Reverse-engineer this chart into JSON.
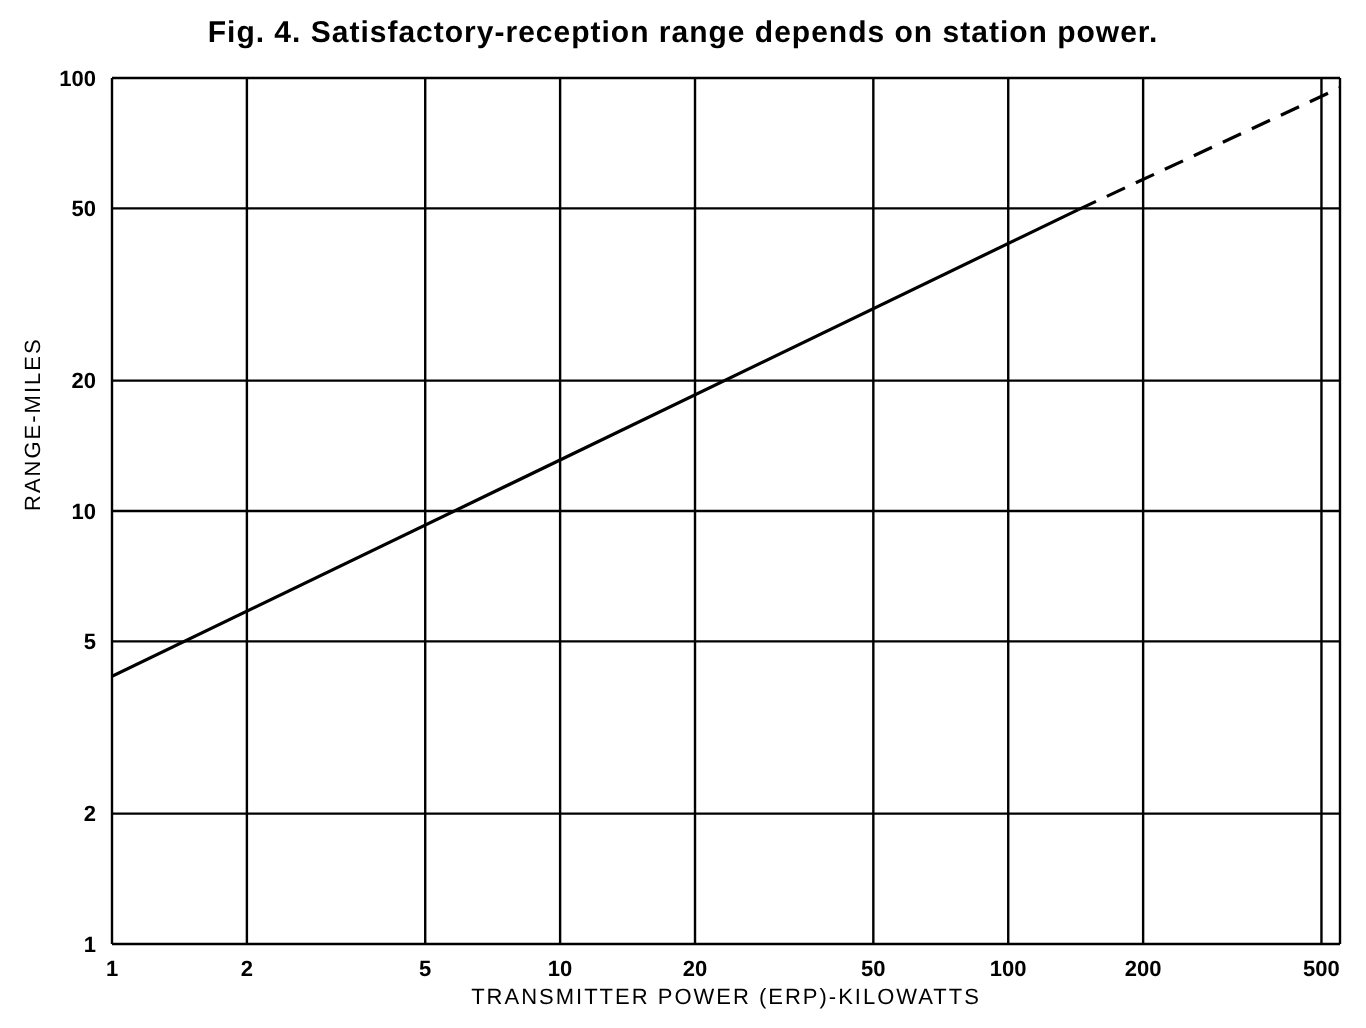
{
  "chart_data": {
    "type": "line",
    "title": "Fig. 4. Satisfactory-reception range depends on station power.",
    "xlabel": "TRANSMITTER POWER (ERP)-KILOWATTS",
    "ylabel": "RANGE-MILES",
    "log": "xy",
    "grid": true,
    "legend": false,
    "marker": "none",
    "xlim": [
      1,
      550
    ],
    "xticks": [
      1,
      2,
      5,
      10,
      20,
      50,
      100,
      200,
      500
    ],
    "ylim": [
      1,
      100
    ],
    "yticks": [
      1,
      2,
      5,
      10,
      20,
      50,
      100
    ],
    "series": [
      {
        "color": "#000000",
        "line_style": "solid",
        "x": [
          1,
          143
        ],
        "values": [
          4.15,
          49.6
        ]
      },
      {
        "color": "#000000",
        "line_style": "dashed",
        "x": [
          143,
          550
        ],
        "values": [
          49.6,
          95
        ]
      }
    ]
  }
}
